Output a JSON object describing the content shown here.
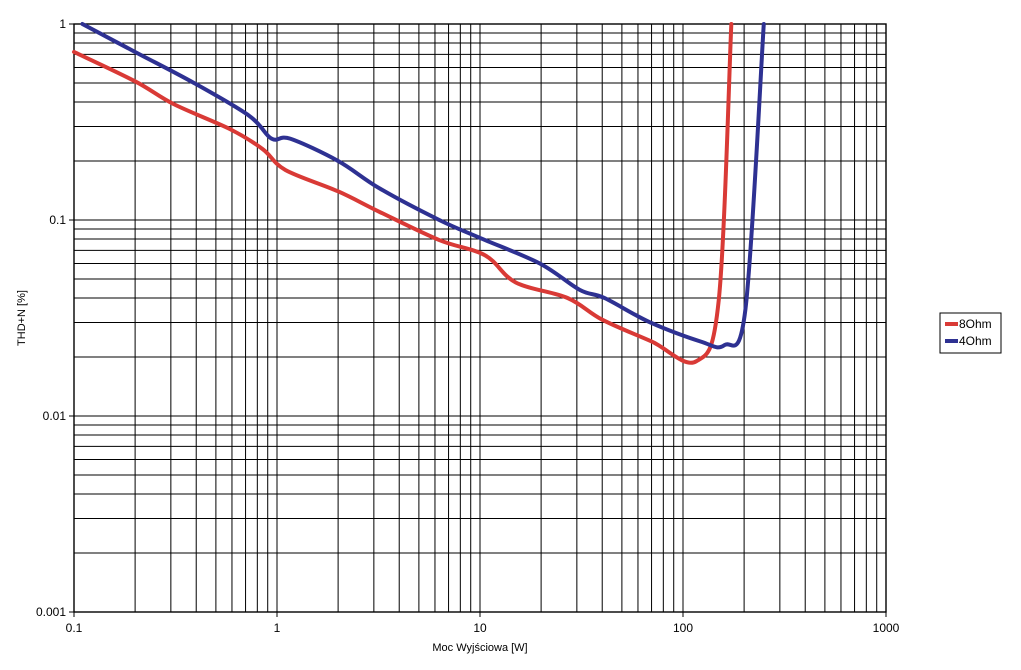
{
  "chart_data": {
    "type": "line",
    "title": "",
    "xlabel": "Moc Wyjściowa [W]",
    "ylabel": "THD+N [%]",
    "xscale": "log",
    "yscale": "log",
    "xlim": [
      0.1,
      1000
    ],
    "ylim": [
      0.001,
      1
    ],
    "x_ticks": [
      "0.1",
      "1",
      "10",
      "100",
      "1000"
    ],
    "y_ticks": [
      "1",
      "0.1",
      "0.01",
      "0.001"
    ],
    "grid": true,
    "legend_position": "right",
    "series": [
      {
        "name": "8Ohm",
        "color": "#d93a36",
        "points": [
          [
            0.1,
            0.72
          ],
          [
            0.2,
            0.51
          ],
          [
            0.31,
            0.39
          ],
          [
            0.59,
            0.29
          ],
          [
            0.85,
            0.23
          ],
          [
            1.1,
            0.18
          ],
          [
            2.0,
            0.14
          ],
          [
            3.2,
            0.11
          ],
          [
            6.3,
            0.079
          ],
          [
            10.6,
            0.066
          ],
          [
            15,
            0.048
          ],
          [
            27,
            0.04
          ],
          [
            40,
            0.031
          ],
          [
            70,
            0.024
          ],
          [
            116,
            0.019
          ],
          [
            150,
            0.039
          ],
          [
            173,
            1.0
          ]
        ]
      },
      {
        "name": "4Ohm",
        "color": "#2e3192",
        "points": [
          [
            0.11,
            1.0
          ],
          [
            0.2,
            0.72
          ],
          [
            0.39,
            0.5
          ],
          [
            0.73,
            0.34
          ],
          [
            0.94,
            0.26
          ],
          [
            1.16,
            0.26
          ],
          [
            2.0,
            0.2
          ],
          [
            3.2,
            0.145
          ],
          [
            6.3,
            0.1
          ],
          [
            10,
            0.081
          ],
          [
            19.7,
            0.06
          ],
          [
            31,
            0.044
          ],
          [
            41,
            0.04
          ],
          [
            69,
            0.03
          ],
          [
            122,
            0.024
          ],
          [
            160,
            0.023
          ],
          [
            203,
            0.035
          ],
          [
            250,
            1.0
          ]
        ]
      }
    ]
  }
}
